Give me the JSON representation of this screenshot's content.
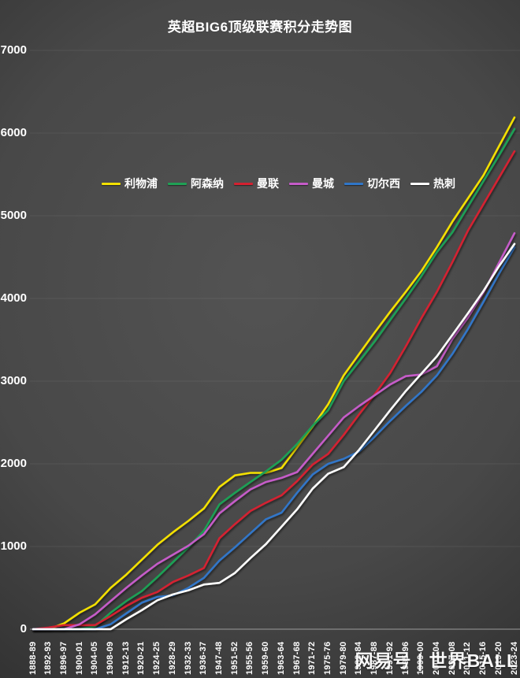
{
  "header": {
    "title": "英超BIG6顶级联赛积分走势图"
  },
  "watermark": {
    "text": "网易号 | 世界BALL"
  },
  "chart_data": {
    "type": "line",
    "title": "英超BIG6顶级联赛积分走势图",
    "xlabel": "",
    "ylabel": "",
    "ylim": [
      0,
      7000
    ],
    "ytick_step": 1000,
    "grid": "horizontal",
    "legend_position": "top-center",
    "categories": [
      "1888-89",
      "1892-93",
      "1896-97",
      "1900-01",
      "1904-05",
      "1908-09",
      "1912-13",
      "1920-21",
      "1924-25",
      "1928-29",
      "1932-33",
      "1936-37",
      "1947-48",
      "1951-52",
      "1955-56",
      "1959-60",
      "1963-64",
      "1967-68",
      "1971-72",
      "1975-76",
      "1979-80",
      "1983-84",
      "1987-88",
      "1991-92",
      "1995-96",
      "1999-00",
      "2003-04",
      "2007-08",
      "2011-12",
      "2015-16",
      "2019-20",
      "2023-24"
    ],
    "series": [
      {
        "name": "利物浦",
        "color": "#f3e000",
        "values": [
          0,
          0,
          70,
          200,
          300,
          500,
          660,
          840,
          1020,
          1170,
          1310,
          1460,
          1720,
          1860,
          1890,
          1890,
          1950,
          2200,
          2450,
          2720,
          3070,
          3330,
          3590,
          3840,
          4080,
          4330,
          4620,
          4930,
          5210,
          5490,
          5840,
          6190
        ]
      },
      {
        "name": "阿森纳",
        "color": "#1fa055",
        "values": [
          0,
          0,
          0,
          0,
          35,
          200,
          340,
          460,
          630,
          810,
          990,
          1190,
          1510,
          1650,
          1780,
          1910,
          2050,
          2240,
          2460,
          2650,
          3000,
          3240,
          3480,
          3740,
          4000,
          4270,
          4560,
          4800,
          5110,
          5420,
          5730,
          6050
        ]
      },
      {
        "name": "曼联",
        "color": "#d42030",
        "values": [
          0,
          20,
          50,
          50,
          50,
          160,
          280,
          380,
          450,
          570,
          650,
          740,
          1100,
          1270,
          1430,
          1530,
          1620,
          1790,
          1990,
          2120,
          2350,
          2600,
          2840,
          3100,
          3420,
          3760,
          4080,
          4440,
          4820,
          5140,
          5460,
          5780
        ]
      },
      {
        "name": "曼城",
        "color": "#c55bc8",
        "values": [
          0,
          0,
          0,
          60,
          180,
          340,
          500,
          650,
          790,
          900,
          1010,
          1150,
          1400,
          1550,
          1690,
          1780,
          1830,
          1900,
          2120,
          2340,
          2560,
          2700,
          2830,
          2960,
          3060,
          3080,
          3180,
          3510,
          3770,
          4070,
          4430,
          4790
        ]
      },
      {
        "name": "切尔西",
        "color": "#3076c8",
        "values": [
          0,
          0,
          0,
          0,
          0,
          60,
          190,
          320,
          390,
          410,
          500,
          620,
          830,
          990,
          1160,
          1330,
          1410,
          1650,
          1870,
          2000,
          2060,
          2150,
          2330,
          2520,
          2700,
          2870,
          3070,
          3330,
          3630,
          3960,
          4300,
          4620
        ]
      },
      {
        "name": "热刺",
        "color": "#ffffff",
        "values": [
          0,
          0,
          0,
          0,
          0,
          0,
          120,
          230,
          350,
          420,
          470,
          540,
          560,
          680,
          860,
          1030,
          1240,
          1450,
          1700,
          1880,
          1960,
          2170,
          2410,
          2650,
          2880,
          3090,
          3300,
          3560,
          3820,
          4090,
          4390,
          4660
        ]
      }
    ]
  }
}
